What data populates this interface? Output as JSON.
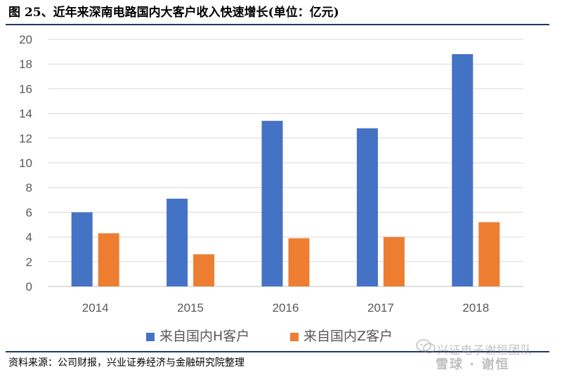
{
  "header": {
    "title": "图 25、近年来深南电路国内大客户收入快速增长(单位：亿元)"
  },
  "footer": {
    "source": "资料来源：公司财报，兴业证券经济与金融研究院整理"
  },
  "watermark": {
    "line1": "兴证电子谢恒团队",
    "line2": "雪球 · 谢恒",
    "icon": "wechat-icon"
  },
  "colors": {
    "series_h": "#4472c4",
    "series_z": "#ed7d31",
    "grid": "#d9d9d9",
    "axis": "#bfbfbf",
    "text": "#595959",
    "rule": "#1f3864"
  },
  "chart_data": {
    "type": "bar",
    "title": "",
    "xlabel": "",
    "ylabel": "",
    "categories": [
      "2014",
      "2015",
      "2016",
      "2017",
      "2018"
    ],
    "series": [
      {
        "name": "来自国内H客户",
        "values": [
          6.0,
          7.1,
          13.4,
          12.8,
          18.8
        ]
      },
      {
        "name": "来自国内Z客户",
        "values": [
          4.3,
          2.6,
          3.9,
          4.0,
          5.2
        ]
      }
    ],
    "ylim": [
      0,
      20
    ],
    "yticks": [
      "0",
      "2",
      "4",
      "6",
      "8",
      "10",
      "12",
      "14",
      "16",
      "18",
      "20"
    ],
    "grid": true,
    "legend_position": "bottom-center"
  }
}
